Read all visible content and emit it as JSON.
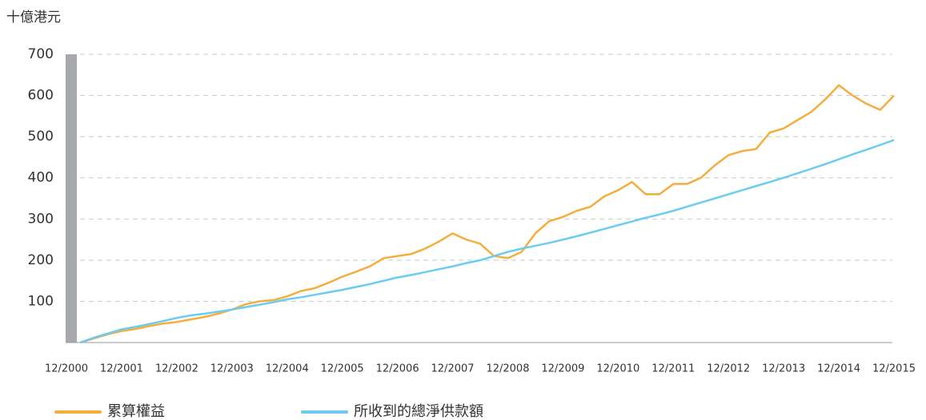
{
  "chart_data": {
    "type": "line",
    "y_label": "十億港元",
    "x": [
      "2001-03",
      "2001-06",
      "2001-09",
      "2001-12",
      "2002-03",
      "2002-06",
      "2002-09",
      "2002-12",
      "2003-03",
      "2003-06",
      "2003-09",
      "2003-12",
      "2004-03",
      "2004-06",
      "2004-09",
      "2004-12",
      "2005-03",
      "2005-06",
      "2005-09",
      "2005-12",
      "2006-03",
      "2006-06",
      "2006-09",
      "2006-12",
      "2007-03",
      "2007-06",
      "2007-09",
      "2007-12",
      "2008-03",
      "2008-06",
      "2008-09",
      "2008-12",
      "2009-03",
      "2009-06",
      "2009-09",
      "2009-12",
      "2010-03",
      "2010-06",
      "2010-09",
      "2010-12",
      "2011-03",
      "2011-06",
      "2011-09",
      "2011-12",
      "2012-03",
      "2012-06",
      "2012-09",
      "2012-12",
      "2013-03",
      "2013-06",
      "2013-09",
      "2013-12",
      "2014-03",
      "2014-06",
      "2014-09",
      "2014-12",
      "2015-03",
      "2015-06",
      "2015-09",
      "2015-12"
    ],
    "series": [
      {
        "name": "累算權益",
        "color": "#f5ae3d",
        "values": [
          0,
          10,
          20,
          28,
          33,
          40,
          46,
          50,
          56,
          62,
          70,
          80,
          93,
          100,
          103,
          112,
          125,
          132,
          145,
          160,
          172,
          185,
          205,
          210,
          215,
          228,
          245,
          265,
          250,
          240,
          210,
          205,
          220,
          265,
          295,
          305,
          320,
          330,
          355,
          370,
          390,
          360,
          360,
          385,
          385,
          400,
          430,
          455,
          465,
          470,
          510,
          520,
          540,
          560,
          590,
          625,
          600,
          580,
          565,
          600
        ]
      },
      {
        "name": "所收到的總淨供款額",
        "color": "#6ccbf0",
        "values": [
          0,
          12,
          22,
          32,
          38,
          45,
          52,
          60,
          66,
          70,
          75,
          80,
          86,
          92,
          98,
          105,
          110,
          116,
          122,
          128,
          135,
          142,
          150,
          158,
          164,
          171,
          178,
          185,
          193,
          200,
          210,
          220,
          228,
          235,
          242,
          250,
          258,
          267,
          276,
          285,
          294,
          303,
          311,
          320,
          330,
          340,
          350,
          360,
          370,
          380,
          390,
          400,
          411,
          422,
          433,
          445,
          457,
          468,
          480,
          492
        ]
      }
    ],
    "xticks": [
      {
        "value": "2000-12",
        "label": "12/2000"
      },
      {
        "value": "2001-12",
        "label": "12/2001"
      },
      {
        "value": "2002-12",
        "label": "12/2002"
      },
      {
        "value": "2003-12",
        "label": "12/2003"
      },
      {
        "value": "2004-12",
        "label": "12/2004"
      },
      {
        "value": "2005-12",
        "label": "12/2005"
      },
      {
        "value": "2006-12",
        "label": "12/2006"
      },
      {
        "value": "2007-12",
        "label": "12/2007"
      },
      {
        "value": "2008-12",
        "label": "12/2008"
      },
      {
        "value": "2009-12",
        "label": "12/2009"
      },
      {
        "value": "2010-12",
        "label": "12/2010"
      },
      {
        "value": "2011-12",
        "label": "12/2011"
      },
      {
        "value": "2012-12",
        "label": "12/2012"
      },
      {
        "value": "2013-12",
        "label": "12/2013"
      },
      {
        "value": "2014-12",
        "label": "12/2014"
      },
      {
        "value": "2015-12",
        "label": "12/2015"
      }
    ],
    "ylim": [
      0,
      700
    ],
    "yticks": [
      100,
      200,
      300,
      400,
      500,
      600,
      700
    ],
    "grid": true
  }
}
